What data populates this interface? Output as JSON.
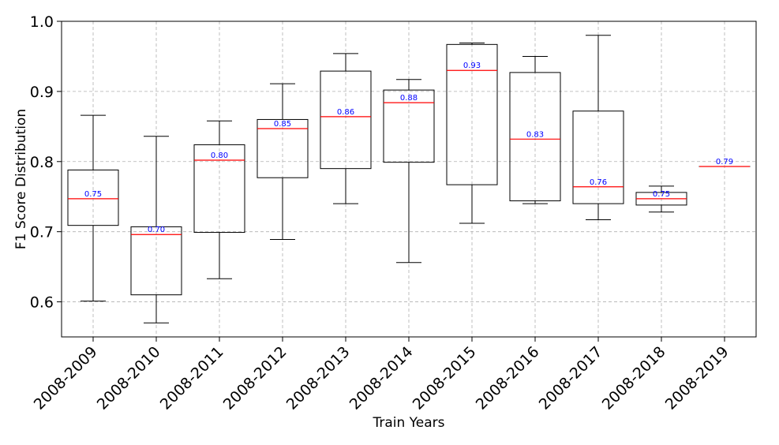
{
  "chart_data": {
    "type": "boxplot",
    "title": "",
    "xlabel": "Train Years",
    "ylabel": "F1 Score Distribution",
    "ylim": [
      0.55,
      1.0
    ],
    "yticks": [
      "0.6",
      "0.7",
      "0.8",
      "0.9",
      "1.0"
    ],
    "grid": true,
    "categories": [
      "2008-2009",
      "2008-2010",
      "2008-2011",
      "2008-2012",
      "2008-2013",
      "2008-2014",
      "2008-2015",
      "2008-2016",
      "2008-2017",
      "2008-2018",
      "2008-2019"
    ],
    "boxes": [
      {
        "min": 0.601,
        "q1": 0.709,
        "median": 0.747,
        "q3": 0.788,
        "max": 0.866,
        "label": "0.75"
      },
      {
        "min": 0.57,
        "q1": 0.61,
        "median": 0.696,
        "q3": 0.707,
        "max": 0.836,
        "label": "0.70"
      },
      {
        "min": 0.633,
        "q1": 0.699,
        "median": 0.802,
        "q3": 0.824,
        "max": 0.858,
        "label": "0.80"
      },
      {
        "min": 0.689,
        "q1": 0.777,
        "median": 0.847,
        "q3": 0.86,
        "max": 0.911,
        "label": "0.85"
      },
      {
        "min": 0.74,
        "q1": 0.79,
        "median": 0.864,
        "q3": 0.929,
        "max": 0.954,
        "label": "0.86"
      },
      {
        "min": 0.656,
        "q1": 0.799,
        "median": 0.884,
        "q3": 0.902,
        "max": 0.917,
        "label": "0.88"
      },
      {
        "min": 0.712,
        "q1": 0.767,
        "median": 0.93,
        "q3": 0.967,
        "max": 0.969,
        "label": "0.93"
      },
      {
        "min": 0.74,
        "q1": 0.744,
        "median": 0.832,
        "q3": 0.927,
        "max": 0.95,
        "label": "0.83"
      },
      {
        "min": 0.717,
        "q1": 0.74,
        "median": 0.764,
        "q3": 0.872,
        "max": 0.98,
        "label": "0.76"
      },
      {
        "min": 0.728,
        "q1": 0.738,
        "median": 0.747,
        "q3": 0.756,
        "max": 0.765,
        "label": "0.75"
      },
      {
        "min": 0.793,
        "q1": 0.793,
        "median": 0.793,
        "q3": 0.793,
        "max": 0.793,
        "label": "0.79"
      }
    ],
    "colors": {
      "box": "#000000",
      "median": "#ff0000",
      "median_label": "#0000ff",
      "grid": "#b0b0b0"
    }
  }
}
